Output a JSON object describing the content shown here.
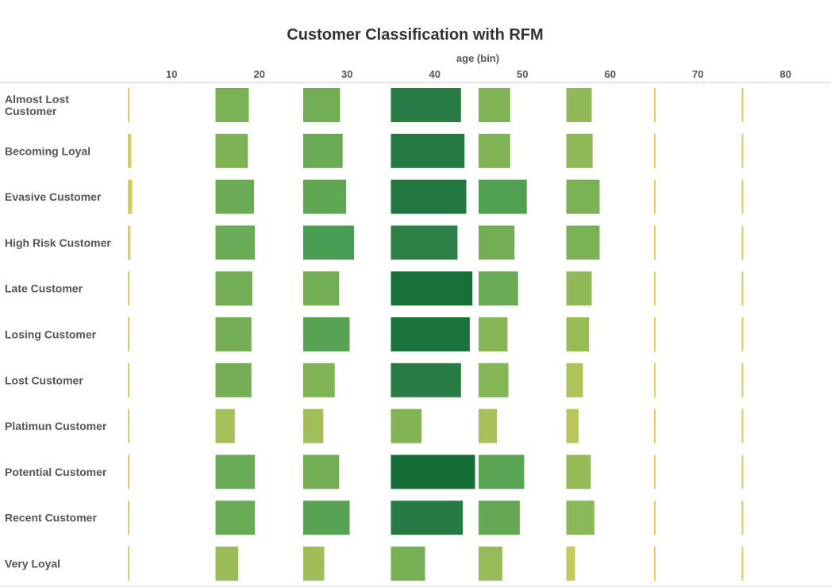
{
  "chart_data": {
    "type": "heatmap",
    "title": "Customer Classification with RFM",
    "xlabel": "age (bin)",
    "ylabel": "",
    "x_ticks": [
      10,
      20,
      30,
      40,
      50,
      60,
      70,
      80
    ],
    "x_bins": [
      10,
      20,
      30,
      40,
      50,
      60,
      70,
      80
    ],
    "categories": [
      "Almost Lost Customer",
      "Becoming Loyal",
      "Evasive Customer",
      "High Risk Customer",
      "Late Customer",
      "Losing Customer",
      "Lost Customer",
      "Platimun Customer",
      "Potential Customer",
      "Recent Customer",
      "Very Loyal"
    ],
    "category_lines": [
      [
        "Almost Lost",
        "Customer"
      ],
      [
        "Becoming Loyal"
      ],
      [
        "Evasive Customer"
      ],
      [
        "High Risk Customer"
      ],
      [
        "Late Customer"
      ],
      [
        "Losing Customer"
      ],
      [
        "Lost Customer"
      ],
      [
        "Platimun Customer"
      ],
      [
        "Potential Customer"
      ],
      [
        "Recent Customer"
      ],
      [
        "Very Loyal"
      ]
    ],
    "values": [
      [
        2,
        38,
        42,
        80,
        36,
        29,
        1,
        1
      ],
      [
        4,
        37,
        45,
        84,
        36,
        30,
        1,
        1
      ],
      [
        5,
        44,
        49,
        86,
        55,
        38,
        1,
        1
      ],
      [
        3,
        45,
        58,
        76,
        41,
        38,
        1,
        1
      ],
      [
        2,
        42,
        41,
        93,
        45,
        29,
        1,
        1
      ],
      [
        2,
        41,
        53,
        90,
        33,
        26,
        1,
        1
      ],
      [
        2,
        41,
        36,
        80,
        34,
        19,
        1,
        1
      ],
      [
        1,
        22,
        23,
        35,
        21,
        14,
        1,
        1
      ],
      [
        2,
        45,
        41,
        96,
        52,
        28,
        1,
        1
      ],
      [
        1,
        45,
        53,
        82,
        47,
        32,
        1,
        1
      ],
      [
        1,
        26,
        24,
        39,
        27,
        10,
        1,
        1
      ]
    ],
    "max_value": 96,
    "color_scale": [
      "#e2cf5c",
      "#abc25a",
      "#79b155",
      "#4a9e52",
      "#2d7f46",
      "#136e37"
    ],
    "axis_color": "#cccccc",
    "legend": "none",
    "grid": false
  }
}
